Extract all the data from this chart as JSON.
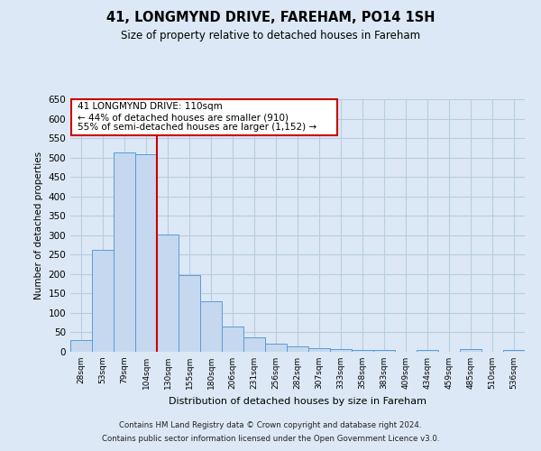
{
  "title": "41, LONGMYND DRIVE, FAREHAM, PO14 1SH",
  "subtitle": "Size of property relative to detached houses in Fareham",
  "xlabel": "Distribution of detached houses by size in Fareham",
  "ylabel": "Number of detached properties",
  "categories": [
    "28sqm",
    "53sqm",
    "79sqm",
    "104sqm",
    "130sqm",
    "155sqm",
    "180sqm",
    "206sqm",
    "231sqm",
    "256sqm",
    "282sqm",
    "307sqm",
    "333sqm",
    "358sqm",
    "383sqm",
    "409sqm",
    "434sqm",
    "459sqm",
    "485sqm",
    "510sqm",
    "536sqm"
  ],
  "values": [
    30,
    263,
    513,
    508,
    302,
    197,
    130,
    65,
    38,
    22,
    14,
    10,
    6,
    5,
    5,
    0,
    5,
    0,
    8,
    0,
    5
  ],
  "bar_color": "#c5d8f0",
  "bar_edge_color": "#5b9bd5",
  "vline_x": 3.5,
  "vline_color": "#cc0000",
  "annotation_title": "41 LONGMYND DRIVE: 110sqm",
  "annotation_line1": "← 44% of detached houses are smaller (910)",
  "annotation_line2": "55% of semi-detached houses are larger (1,152) →",
  "annotation_box_color": "#ffffff",
  "annotation_box_edge": "#cc0000",
  "ylim": [
    0,
    650
  ],
  "yticks": [
    0,
    50,
    100,
    150,
    200,
    250,
    300,
    350,
    400,
    450,
    500,
    550,
    600,
    650
  ],
  "footer1": "Contains HM Land Registry data © Crown copyright and database right 2024.",
  "footer2": "Contains public sector information licensed under the Open Government Licence v3.0.",
  "bg_color": "#dce8f5",
  "plot_bg_color": "#dce8f5",
  "grid_color": "#b8cde0"
}
